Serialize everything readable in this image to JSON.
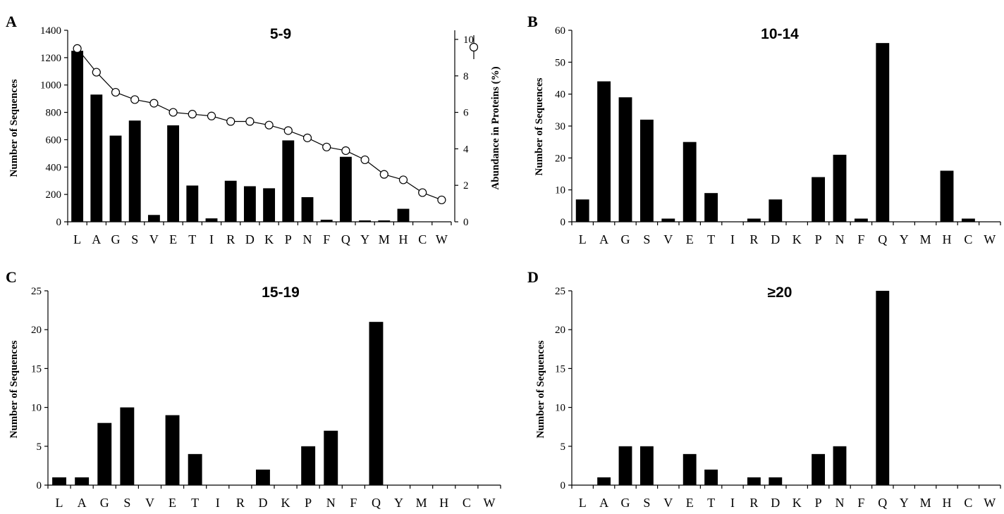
{
  "chart_data": [
    {
      "type": "bar",
      "panel_label": "A",
      "title": "5-9",
      "ylabel": "Number of Sequences",
      "y2label": "Abundance in Proteins (%)",
      "ylim": [
        0,
        1400
      ],
      "y_ticks": [
        "0",
        "200",
        "400",
        "600",
        "800",
        "1000",
        "1200",
        "1400"
      ],
      "y2lim": [
        0,
        10.5
      ],
      "y2_ticks": [
        "0",
        "2",
        "4",
        "6",
        "8",
        "10"
      ],
      "categories": [
        "L",
        "A",
        "G",
        "S",
        "V",
        "E",
        "T",
        "I",
        "R",
        "D",
        "K",
        "P",
        "N",
        "F",
        "Q",
        "Y",
        "M",
        "H",
        "C",
        "W"
      ],
      "values": [
        1250,
        930,
        630,
        740,
        50,
        705,
        265,
        25,
        300,
        260,
        245,
        595,
        180,
        15,
        475,
        10,
        10,
        95,
        0,
        0
      ],
      "line_series": {
        "axis": "secondary",
        "values": [
          9.5,
          8.2,
          7.1,
          6.7,
          6.5,
          6.0,
          5.9,
          5.8,
          5.5,
          5.5,
          5.3,
          5.0,
          4.6,
          4.1,
          3.9,
          3.4,
          2.6,
          2.3,
          1.6,
          1.2
        ]
      }
    },
    {
      "type": "bar",
      "panel_label": "B",
      "title": "10-14",
      "ylabel": "Number of Sequences",
      "ylim": [
        0,
        60
      ],
      "y_ticks": [
        "0",
        "10",
        "20",
        "30",
        "40",
        "50",
        "60"
      ],
      "categories": [
        "L",
        "A",
        "G",
        "S",
        "V",
        "E",
        "T",
        "I",
        "R",
        "D",
        "K",
        "P",
        "N",
        "F",
        "Q",
        "Y",
        "M",
        "H",
        "C",
        "W"
      ],
      "values": [
        7,
        44,
        39,
        32,
        1,
        25,
        9,
        0,
        1,
        7,
        0,
        14,
        21,
        1,
        56,
        0,
        0,
        16,
        1,
        0
      ]
    },
    {
      "type": "bar",
      "panel_label": "C",
      "title": "15-19",
      "ylabel": "Number of Sequences",
      "ylim": [
        0,
        25
      ],
      "y_ticks": [
        "0",
        "5",
        "10",
        "15",
        "20",
        "25"
      ],
      "categories": [
        "L",
        "A",
        "G",
        "S",
        "V",
        "E",
        "T",
        "I",
        "R",
        "D",
        "K",
        "P",
        "N",
        "F",
        "Q",
        "Y",
        "M",
        "H",
        "C",
        "W"
      ],
      "values": [
        1,
        1,
        8,
        10,
        0,
        9,
        4,
        0,
        0,
        2,
        0,
        5,
        7,
        0,
        21,
        0,
        0,
        0,
        0,
        0
      ]
    },
    {
      "type": "bar",
      "panel_label": "D",
      "title": "≥20",
      "ylabel": "Number of Sequences",
      "ylim": [
        0,
        25
      ],
      "y_ticks": [
        "0",
        "5",
        "10",
        "15",
        "20",
        "25"
      ],
      "categories": [
        "L",
        "A",
        "G",
        "S",
        "V",
        "E",
        "T",
        "I",
        "R",
        "D",
        "K",
        "P",
        "N",
        "F",
        "Q",
        "Y",
        "M",
        "H",
        "C",
        "W"
      ],
      "values": [
        0,
        1,
        5,
        5,
        0,
        4,
        2,
        0,
        1,
        1,
        0,
        4,
        5,
        0,
        25,
        0,
        0,
        0,
        0,
        0
      ]
    }
  ]
}
